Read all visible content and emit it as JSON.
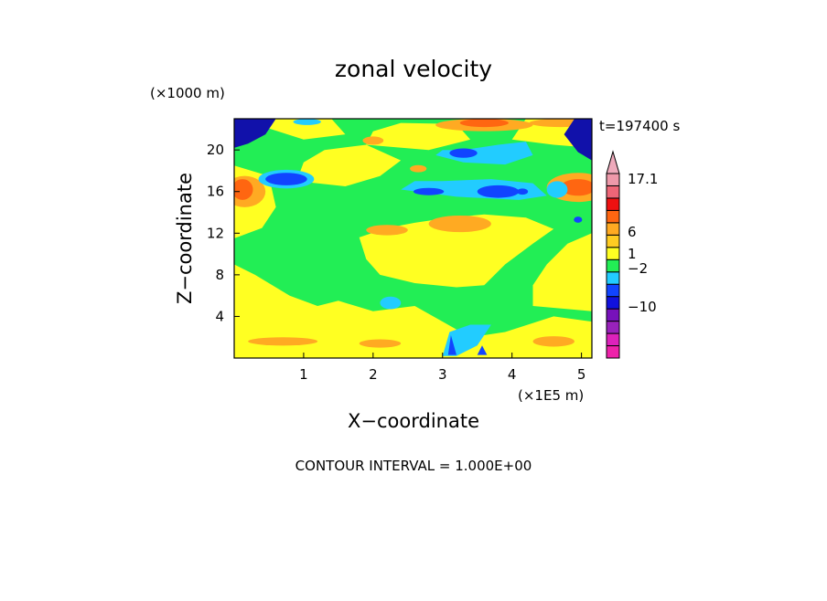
{
  "chart_data": {
    "type": "heatmap",
    "title": "zonal velocity",
    "xlabel": "X−coordinate",
    "ylabel": "Z−coordinate",
    "x_unit": "(×1E5 m)",
    "y_unit": "(×1000 m)",
    "xlim": [
      0,
      5.15
    ],
    "ylim": [
      0,
      23
    ],
    "x_ticks": [
      1,
      2,
      3,
      4,
      5
    ],
    "x_tick_labels": [
      "1",
      "2",
      "3",
      "4",
      "5"
    ],
    "y_ticks": [
      4,
      8,
      12,
      16,
      20
    ],
    "y_tick_labels": [
      "4",
      "8",
      "12",
      "16",
      "20"
    ],
    "time_label": "t=197400 s",
    "contour_note": "CONTOUR INTERVAL = 1.000E+00",
    "colorbar": {
      "labels": [
        {
          "text": "17.1",
          "value": 17.1
        },
        {
          "text": "6",
          "value": 6
        },
        {
          "text": "1",
          "value": 1
        },
        {
          "text": "−2",
          "value": -2
        },
        {
          "text": "−10",
          "value": -10
        }
      ],
      "levels": [
        {
          "color": "#ee22aa"
        },
        {
          "color": "#dd22bb"
        },
        {
          "color": "#9922bb"
        },
        {
          "color": "#7711bb"
        },
        {
          "color": "#1111dd"
        },
        {
          "color": "#1144ff"
        },
        {
          "color": "#22ccff"
        },
        {
          "color": "#22ee55"
        },
        {
          "color": "#ffff22"
        },
        {
          "color": "#ffcc22"
        },
        {
          "color": "#ffaa22"
        },
        {
          "color": "#ff6611"
        },
        {
          "color": "#ee1111"
        },
        {
          "color": "#ee6677"
        },
        {
          "color": "#ee99aa"
        }
      ],
      "extend_color": "#eeaabb"
    },
    "palette": {
      "base": "#22ee55",
      "yellow": "#ffff22",
      "orange": "#ffaa22",
      "orange_dark": "#ff6611",
      "cyan": "#22ccff",
      "blue": "#1144ff",
      "navy": "#1111aa"
    },
    "regions": [
      {
        "shape": "poly",
        "color": "yellow",
        "points": [
          [
            0,
            0
          ],
          [
            5.15,
            0
          ],
          [
            5.15,
            3.5
          ],
          [
            4.6,
            4
          ],
          [
            3.9,
            2.5
          ],
          [
            3.4,
            2
          ],
          [
            3,
            3.5
          ],
          [
            2.6,
            5
          ],
          [
            2,
            4.5
          ],
          [
            1.5,
            5.5
          ],
          [
            1.2,
            5
          ],
          [
            0.8,
            6
          ],
          [
            0.3,
            8
          ],
          [
            0,
            9
          ]
        ]
      },
      {
        "shape": "poly",
        "color": "yellow",
        "points": [
          [
            2.1,
            8
          ],
          [
            2.6,
            7.2
          ],
          [
            3.2,
            6.8
          ],
          [
            3.6,
            7
          ],
          [
            3.9,
            9
          ],
          [
            4.3,
            11
          ],
          [
            4.6,
            12.4
          ],
          [
            4.2,
            13.5
          ],
          [
            3.6,
            13.8
          ],
          [
            3.1,
            13.5
          ],
          [
            2.6,
            13
          ],
          [
            2.2,
            12.5
          ],
          [
            1.8,
            11.6
          ],
          [
            1.9,
            9.5
          ]
        ]
      },
      {
        "shape": "poly",
        "color": "yellow",
        "points": [
          [
            4.3,
            5
          ],
          [
            5.15,
            4.5
          ],
          [
            5.15,
            12
          ],
          [
            4.8,
            11
          ],
          [
            4.5,
            9
          ],
          [
            4.3,
            7
          ]
        ]
      },
      {
        "shape": "poly",
        "color": "yellow",
        "points": [
          [
            0.9,
            17
          ],
          [
            1.6,
            16.5
          ],
          [
            2.1,
            17.5
          ],
          [
            2.4,
            19
          ],
          [
            1.9,
            20.5
          ],
          [
            1.3,
            20
          ],
          [
            1,
            18.8
          ]
        ]
      },
      {
        "shape": "poly",
        "color": "yellow",
        "points": [
          [
            1.9,
            20.5
          ],
          [
            2.8,
            20
          ],
          [
            3.4,
            21
          ],
          [
            3.2,
            22.5
          ],
          [
            2.4,
            22.6
          ],
          [
            2,
            21.8
          ]
        ]
      },
      {
        "shape": "poly",
        "color": "yellow",
        "points": [
          [
            4,
            21
          ],
          [
            4.6,
            20.5
          ],
          [
            5.15,
            20.2
          ],
          [
            5.15,
            23
          ],
          [
            4.2,
            23
          ]
        ]
      },
      {
        "shape": "poly",
        "color": "yellow",
        "points": [
          [
            0,
            11.5
          ],
          [
            0.4,
            12.5
          ],
          [
            0.6,
            14.5
          ],
          [
            0.5,
            17.5
          ],
          [
            0,
            18.5
          ]
        ]
      },
      {
        "shape": "poly",
        "color": "yellow",
        "points": [
          [
            0.3,
            22.5
          ],
          [
            1,
            21
          ],
          [
            1.6,
            21.5
          ],
          [
            1.4,
            23
          ],
          [
            0.5,
            23
          ]
        ]
      },
      {
        "shape": "ellipse",
        "color": "orange",
        "cx": 3.25,
        "cy": 12.9,
        "rx": 0.45,
        "ry": 0.8
      },
      {
        "shape": "ellipse",
        "color": "orange",
        "cx": 2.2,
        "cy": 12.3,
        "rx": 0.3,
        "ry": 0.5
      },
      {
        "shape": "ellipse",
        "color": "orange",
        "cx": 0.15,
        "cy": 16,
        "rx": 0.3,
        "ry": 1.5
      },
      {
        "shape": "ellipse",
        "color": "orange",
        "cx": 4.95,
        "cy": 16.4,
        "rx": 0.45,
        "ry": 1.4
      },
      {
        "shape": "ellipse",
        "color": "orange",
        "cx": 3.6,
        "cy": 22.4,
        "rx": 0.7,
        "ry": 0.6
      },
      {
        "shape": "ellipse",
        "color": "orange",
        "cx": 4.7,
        "cy": 22.6,
        "rx": 0.45,
        "ry": 0.4
      },
      {
        "shape": "ellipse",
        "color": "orange",
        "cx": 2,
        "cy": 20.9,
        "rx": 0.15,
        "ry": 0.4
      },
      {
        "shape": "ellipse",
        "color": "orange",
        "cx": 2.65,
        "cy": 18.2,
        "rx": 0.12,
        "ry": 0.35
      },
      {
        "shape": "ellipse",
        "color": "orange",
        "cx": 0.7,
        "cy": 1.6,
        "rx": 0.5,
        "ry": 0.4
      },
      {
        "shape": "ellipse",
        "color": "orange",
        "cx": 2.1,
        "cy": 1.4,
        "rx": 0.3,
        "ry": 0.4
      },
      {
        "shape": "ellipse",
        "color": "orange",
        "cx": 4.6,
        "cy": 1.6,
        "rx": 0.3,
        "ry": 0.5
      },
      {
        "shape": "ellipse",
        "color": "orange_dark",
        "cx": 0.12,
        "cy": 16.2,
        "rx": 0.15,
        "ry": 1
      },
      {
        "shape": "ellipse",
        "color": "orange_dark",
        "cx": 4.95,
        "cy": 16.4,
        "rx": 0.25,
        "ry": 0.8
      },
      {
        "shape": "ellipse",
        "color": "orange_dark",
        "cx": 3.6,
        "cy": 22.6,
        "rx": 0.35,
        "ry": 0.4
      },
      {
        "shape": "poly",
        "color": "cyan",
        "points": [
          [
            2.9,
            19.5
          ],
          [
            3.3,
            18.8
          ],
          [
            3.9,
            18.6
          ],
          [
            4.3,
            19.5
          ],
          [
            4.2,
            20.8
          ],
          [
            3.8,
            20.5
          ],
          [
            3.3,
            20
          ],
          [
            3,
            20
          ]
        ]
      },
      {
        "shape": "poly",
        "color": "cyan",
        "points": [
          [
            2.4,
            16.2
          ],
          [
            3.2,
            15.5
          ],
          [
            4.1,
            15.2
          ],
          [
            4.5,
            15.6
          ],
          [
            4.3,
            16.8
          ],
          [
            3.7,
            17.2
          ],
          [
            3,
            17
          ],
          [
            2.6,
            17
          ]
        ]
      },
      {
        "shape": "ellipse",
        "color": "cyan",
        "cx": 4.65,
        "cy": 16.2,
        "rx": 0.15,
        "ry": 0.8
      },
      {
        "shape": "ellipse",
        "color": "cyan",
        "cx": 2.25,
        "cy": 5.3,
        "rx": 0.15,
        "ry": 0.6
      },
      {
        "shape": "ellipse",
        "color": "cyan",
        "cx": 1.05,
        "cy": 22.7,
        "rx": 0.2,
        "ry": 0.3
      },
      {
        "shape": "ellipse",
        "color": "cyan",
        "cx": 0.75,
        "cy": 17.2,
        "rx": 0.4,
        "ry": 0.9
      },
      {
        "shape": "poly",
        "color": "cyan",
        "points": [
          [
            3,
            0.2
          ],
          [
            3.2,
            0.2
          ],
          [
            3.5,
            1.2
          ],
          [
            3.7,
            3.2
          ],
          [
            3.4,
            3.2
          ],
          [
            3.1,
            2.5
          ]
        ]
      },
      {
        "shape": "ellipse",
        "color": "blue",
        "cx": 0.75,
        "cy": 17.2,
        "rx": 0.3,
        "ry": 0.6
      },
      {
        "shape": "ellipse",
        "color": "blue",
        "cx": 3.8,
        "cy": 16,
        "rx": 0.3,
        "ry": 0.6
      },
      {
        "shape": "ellipse",
        "color": "blue",
        "cx": 3.3,
        "cy": 19.7,
        "rx": 0.2,
        "ry": 0.45
      },
      {
        "shape": "ellipse",
        "color": "blue",
        "cx": 2.8,
        "cy": 16,
        "rx": 0.22,
        "ry": 0.35
      },
      {
        "shape": "ellipse",
        "color": "blue",
        "cx": 4.15,
        "cy": 16,
        "rx": 0.08,
        "ry": 0.3
      },
      {
        "shape": "ellipse",
        "color": "blue",
        "cx": 4.95,
        "cy": 13.3,
        "rx": 0.06,
        "ry": 0.3
      },
      {
        "shape": "poly",
        "color": "blue",
        "points": [
          [
            3.08,
            0.3
          ],
          [
            3.12,
            2.2
          ],
          [
            3.2,
            0.3
          ]
        ]
      },
      {
        "shape": "poly",
        "color": "blue",
        "points": [
          [
            3.5,
            0.3
          ],
          [
            3.57,
            1.2
          ],
          [
            3.64,
            0.3
          ]
        ]
      },
      {
        "shape": "poly",
        "color": "navy",
        "points": [
          [
            0,
            23
          ],
          [
            0.6,
            23
          ],
          [
            0.45,
            21.5
          ],
          [
            0.2,
            20.6
          ],
          [
            0,
            20.2
          ]
        ]
      },
      {
        "shape": "poly",
        "color": "navy",
        "points": [
          [
            4.9,
            23
          ],
          [
            5.15,
            23
          ],
          [
            5.15,
            19
          ],
          [
            4.95,
            19.8
          ],
          [
            4.75,
            21.5
          ]
        ]
      }
    ]
  }
}
